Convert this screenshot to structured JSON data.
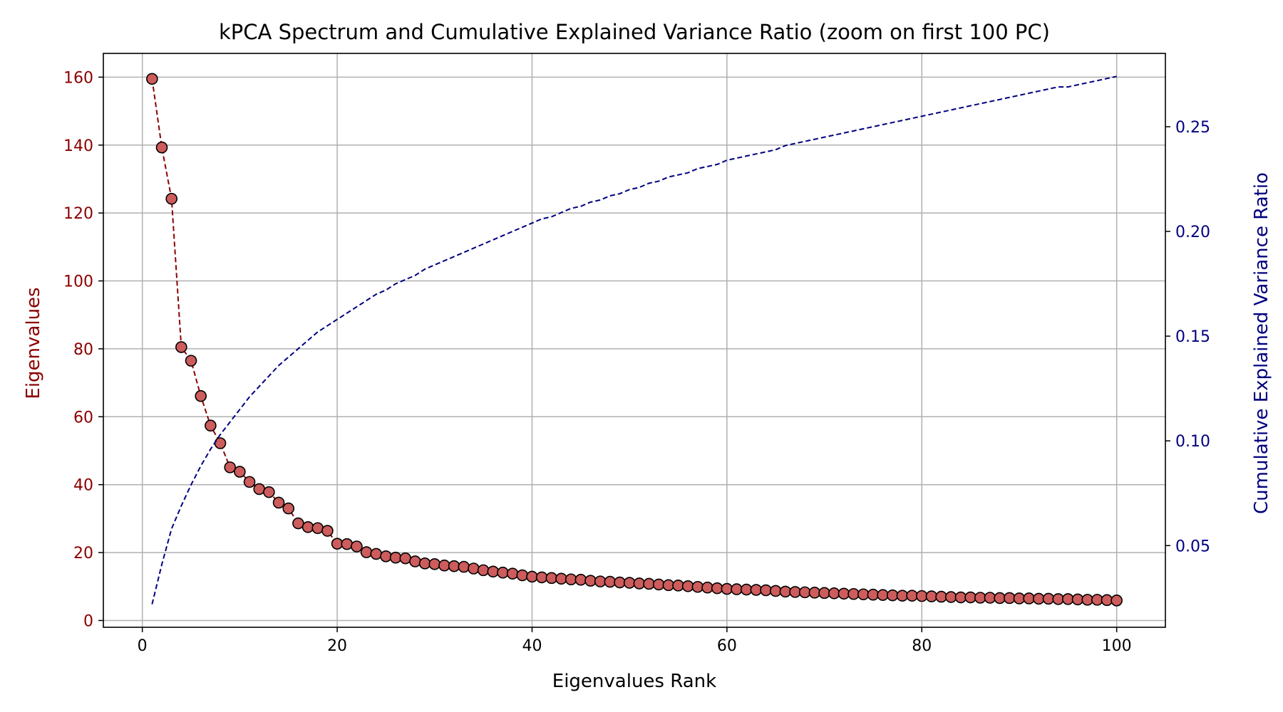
{
  "chart_data": {
    "type": "line",
    "title": "kPCA Spectrum and Cumulative Explained Variance Ratio (zoom on first 100 PC)",
    "xlabel": "Eigenvalues Rank",
    "ylabel_left": "Eigenvalues",
    "ylabel_right": "Cumulative Explained Variance Ratio",
    "xlim": [
      -4,
      105
    ],
    "ylim_left": [
      -2,
      167
    ],
    "ylim_right": [
      0.011,
      0.285
    ],
    "x_ticks": [
      0,
      20,
      40,
      60,
      80,
      100
    ],
    "y_left_ticks": [
      0,
      20,
      40,
      60,
      80,
      100,
      120,
      140,
      160
    ],
    "y_right_ticks": [
      0.05,
      0.1,
      0.15,
      0.2,
      0.25
    ],
    "grid": true,
    "colors": {
      "eigen_marker": "#cd5c5c",
      "eigen_line": "#8b0000",
      "left_axis": "#8b0000",
      "cumulative_line": "#00007f",
      "right_axis": "#00007f"
    },
    "series": [
      {
        "axis": "left",
        "style": "dashed-markers",
        "x_start": 1,
        "values": [
          159.5,
          139.3,
          124.2,
          80.5,
          76.5,
          66.1,
          57.4,
          52.2,
          45.1,
          43.8,
          40.8,
          38.7,
          37.8,
          34.7,
          33.0,
          28.6,
          27.5,
          27.2,
          26.4,
          22.6,
          22.5,
          21.8,
          20.1,
          19.6,
          18.9,
          18.5,
          18.3,
          17.4,
          16.8,
          16.6,
          16.2,
          16.0,
          15.8,
          15.3,
          14.8,
          14.4,
          14.1,
          13.8,
          13.3,
          12.9,
          12.7,
          12.5,
          12.3,
          12.1,
          12.0,
          11.7,
          11.5,
          11.4,
          11.2,
          11.1,
          10.9,
          10.8,
          10.6,
          10.4,
          10.3,
          10.1,
          9.9,
          9.7,
          9.5,
          9.3,
          9.2,
          9.1,
          9.0,
          8.9,
          8.7,
          8.5,
          8.4,
          8.3,
          8.2,
          8.1,
          8.0,
          7.9,
          7.8,
          7.7,
          7.6,
          7.5,
          7.4,
          7.3,
          7.3,
          7.2,
          7.1,
          7.0,
          6.9,
          6.8,
          6.8,
          6.7,
          6.7,
          6.6,
          6.6,
          6.5,
          6.5,
          6.4,
          6.4,
          6.3,
          6.3,
          6.2,
          6.1,
          6.1,
          6.0,
          5.9
        ]
      },
      {
        "axis": "right",
        "style": "dashed",
        "x_start": 1,
        "values": [
          0.022,
          0.041,
          0.058,
          0.069,
          0.079,
          0.088,
          0.096,
          0.103,
          0.109,
          0.115,
          0.121,
          0.126,
          0.131,
          0.136,
          0.14,
          0.144,
          0.148,
          0.152,
          0.155,
          0.158,
          0.161,
          0.164,
          0.167,
          0.17,
          0.172,
          0.175,
          0.177,
          0.179,
          0.182,
          0.184,
          0.186,
          0.188,
          0.19,
          0.192,
          0.194,
          0.196,
          0.198,
          0.2,
          0.202,
          0.204,
          0.206,
          0.207,
          0.209,
          0.211,
          0.212,
          0.214,
          0.215,
          0.217,
          0.218,
          0.22,
          0.221,
          0.223,
          0.224,
          0.226,
          0.227,
          0.228,
          0.23,
          0.231,
          0.232,
          0.234,
          0.235,
          0.236,
          0.237,
          0.238,
          0.239,
          0.241,
          0.242,
          0.243,
          0.244,
          0.245,
          0.246,
          0.247,
          0.248,
          0.249,
          0.25,
          0.251,
          0.252,
          0.253,
          0.254,
          0.255,
          0.256,
          0.257,
          0.258,
          0.259,
          0.26,
          0.261,
          0.262,
          0.263,
          0.264,
          0.265,
          0.266,
          0.267,
          0.268,
          0.269,
          0.269,
          0.27,
          0.271,
          0.272,
          0.273,
          0.274
        ]
      }
    ]
  }
}
